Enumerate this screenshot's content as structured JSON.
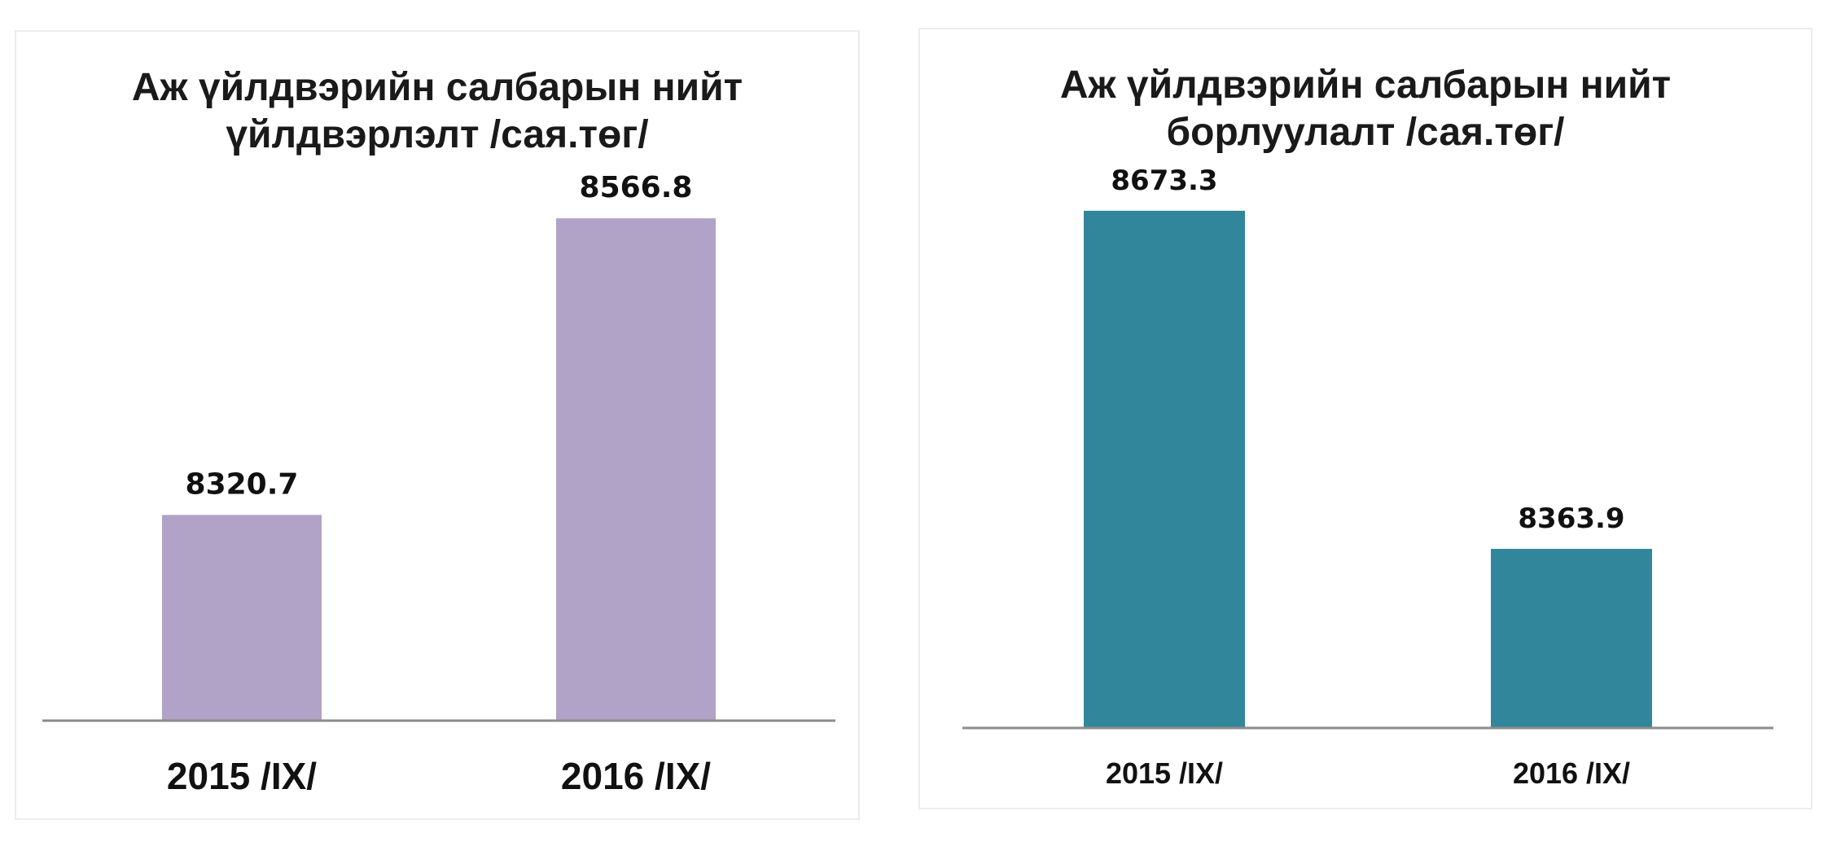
{
  "chart_data": [
    {
      "type": "bar",
      "title_lines": [
        "Аж үйлдвэрийн  салбарын нийт",
        "үйлдвэрлэлт  /сая.төг/"
      ],
      "categories": [
        "2015 /IX/",
        "2016 /IX/"
      ],
      "values": [
        8320.7,
        8566.8
      ],
      "data_labels": [
        "8320.7",
        "8566.8"
      ],
      "ylim": [
        8150,
        8600
      ],
      "color": "#b1a2c8",
      "grid": false,
      "legend": "none"
    },
    {
      "type": "bar",
      "title_lines": [
        "Аж үйлдвэрийн  салбарын нийт",
        "борлуулалт  /сая.төг/"
      ],
      "categories": [
        "2015 /IX/",
        "2016 /IX/"
      ],
      "values": [
        8673.3,
        8363.9
      ],
      "data_labels": [
        "8673.3",
        "8363.9"
      ],
      "ylim": [
        8200,
        8700
      ],
      "color": "#31869b",
      "grid": false,
      "legend": "none"
    }
  ]
}
